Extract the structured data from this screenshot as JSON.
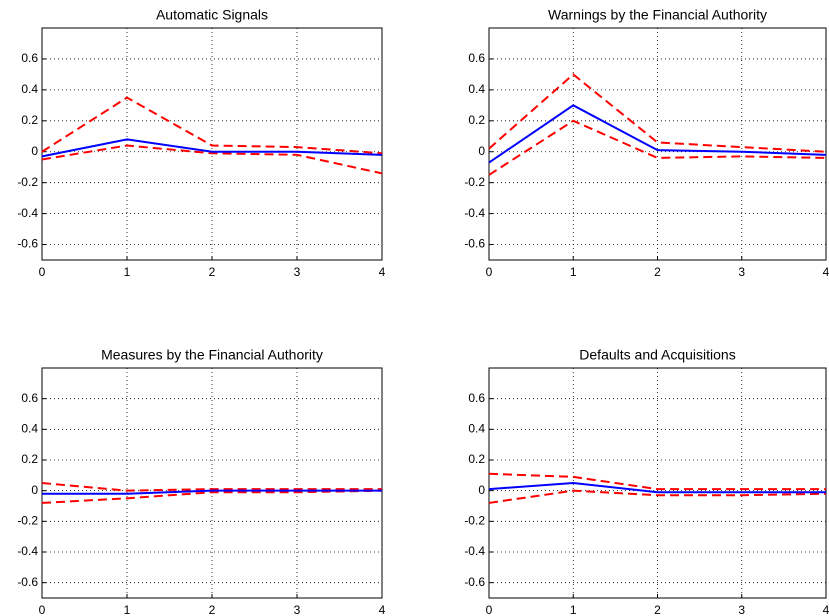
{
  "chart_data": [
    {
      "type": "line",
      "title": "Automatic Signals",
      "x": [
        0,
        1,
        2,
        3,
        4
      ],
      "xlim": [
        0,
        4
      ],
      "xticks": [
        0,
        1,
        2,
        3,
        4
      ],
      "ylim": [
        -0.7,
        0.8
      ],
      "yticks": [
        -0.6,
        -0.4,
        -0.2,
        0,
        0.2,
        0.4,
        0.6
      ],
      "grid": true,
      "series": [
        {
          "color": "#ff0000",
          "line_style": "dashed",
          "values": [
            0.0,
            0.35,
            0.04,
            0.03,
            -0.01
          ]
        },
        {
          "color": "#ff0000",
          "line_style": "dashed",
          "values": [
            -0.05,
            0.04,
            -0.01,
            -0.02,
            -0.14
          ]
        },
        {
          "color": "#0000ff",
          "line_style": "solid",
          "values": [
            -0.03,
            0.08,
            0.0,
            0.0,
            -0.02
          ]
        }
      ]
    },
    {
      "type": "line",
      "title": "Warnings by the Financial Authority",
      "x": [
        0,
        1,
        2,
        3,
        4
      ],
      "xlim": [
        0,
        4
      ],
      "xticks": [
        0,
        1,
        2,
        3,
        4
      ],
      "ylim": [
        -0.7,
        0.8
      ],
      "yticks": [
        -0.6,
        -0.4,
        -0.2,
        0,
        0.2,
        0.4,
        0.6
      ],
      "grid": true,
      "series": [
        {
          "color": "#ff0000",
          "line_style": "dashed",
          "values": [
            0.02,
            0.5,
            0.06,
            0.03,
            0.0
          ]
        },
        {
          "color": "#ff0000",
          "line_style": "dashed",
          "values": [
            -0.15,
            0.2,
            -0.04,
            -0.03,
            -0.04
          ]
        },
        {
          "color": "#0000ff",
          "line_style": "solid",
          "values": [
            -0.07,
            0.3,
            0.01,
            0.0,
            -0.02
          ]
        }
      ]
    },
    {
      "type": "line",
      "title": "Measures by the Financial Authority",
      "x": [
        0,
        1,
        2,
        3,
        4
      ],
      "xlim": [
        0,
        4
      ],
      "xticks": [
        0,
        1,
        2,
        3,
        4
      ],
      "ylim": [
        -0.7,
        0.8
      ],
      "yticks": [
        -0.6,
        -0.4,
        -0.2,
        0,
        0.2,
        0.4,
        0.6
      ],
      "grid": true,
      "series": [
        {
          "color": "#ff0000",
          "line_style": "dashed",
          "values": [
            0.05,
            0.0,
            0.01,
            0.01,
            0.01
          ]
        },
        {
          "color": "#ff0000",
          "line_style": "dashed",
          "values": [
            -0.08,
            -0.05,
            -0.01,
            -0.01,
            0.0
          ]
        },
        {
          "color": "#0000ff",
          "line_style": "solid",
          "values": [
            -0.02,
            -0.02,
            0.0,
            0.0,
            0.0
          ]
        }
      ]
    },
    {
      "type": "line",
      "title": "Defaults and Acquisitions",
      "x": [
        0,
        1,
        2,
        3,
        4
      ],
      "xlim": [
        0,
        4
      ],
      "xticks": [
        0,
        1,
        2,
        3,
        4
      ],
      "ylim": [
        -0.7,
        0.8
      ],
      "yticks": [
        -0.6,
        -0.4,
        -0.2,
        0,
        0.2,
        0.4,
        0.6
      ],
      "grid": true,
      "series": [
        {
          "color": "#ff0000",
          "line_style": "dashed",
          "values": [
            0.11,
            0.09,
            0.01,
            0.01,
            0.01
          ]
        },
        {
          "color": "#ff0000",
          "line_style": "dashed",
          "values": [
            -0.08,
            0.0,
            -0.03,
            -0.03,
            -0.02
          ]
        },
        {
          "color": "#0000ff",
          "line_style": "solid",
          "values": [
            0.01,
            0.05,
            -0.01,
            -0.01,
            -0.01
          ]
        }
      ]
    }
  ]
}
